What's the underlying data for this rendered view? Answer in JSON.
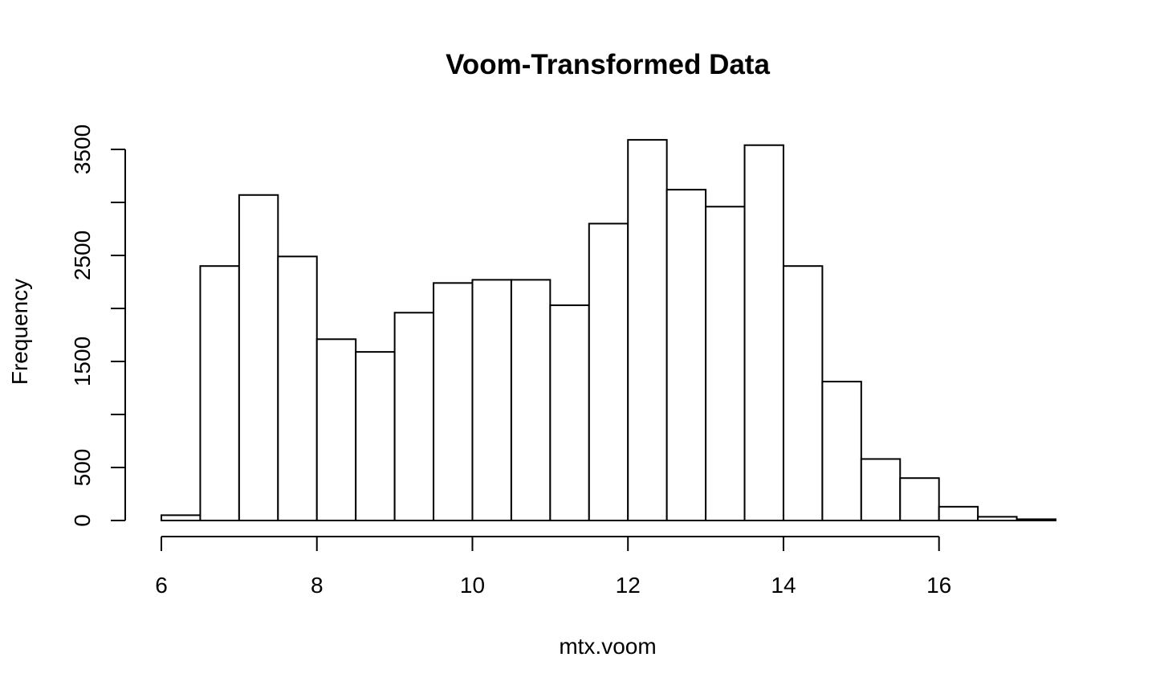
{
  "chart_data": {
    "type": "bar",
    "title": "Voom-Transformed Data",
    "xlabel": "mtx.voom",
    "ylabel": "Frequency",
    "bin_edges": [
      6,
      6.5,
      7,
      7.5,
      8,
      8.5,
      9,
      9.5,
      10,
      10.5,
      11,
      11.5,
      12,
      12.5,
      13,
      13.5,
      14,
      14.5,
      15,
      15.5,
      16,
      16.5,
      17,
      17.5
    ],
    "values": [
      50,
      2400,
      3070,
      2490,
      1710,
      1590,
      1960,
      2240,
      2270,
      2270,
      2030,
      2800,
      3590,
      3120,
      2960,
      3540,
      2400,
      1310,
      580,
      400,
      130,
      35,
      12
    ],
    "xlim": [
      6,
      17.5
    ],
    "ylim": [
      0,
      3600
    ],
    "x_ticks": [
      "6",
      "8",
      "10",
      "12",
      "14",
      "16"
    ],
    "x_tick_values": [
      6,
      8,
      10,
      12,
      14,
      16
    ],
    "y_ticks": [
      "0",
      "500",
      "1500",
      "2500",
      "3500"
    ],
    "y_tick_values": [
      0,
      500,
      1000,
      1500,
      2000,
      2500,
      3000,
      3500
    ],
    "y_labeled_values": [
      0,
      500,
      1500,
      2500,
      3500
    ],
    "x_axis_range": [
      6,
      16
    ],
    "y_axis_range": [
      0,
      3500
    ],
    "grid": false,
    "legend": "none"
  }
}
